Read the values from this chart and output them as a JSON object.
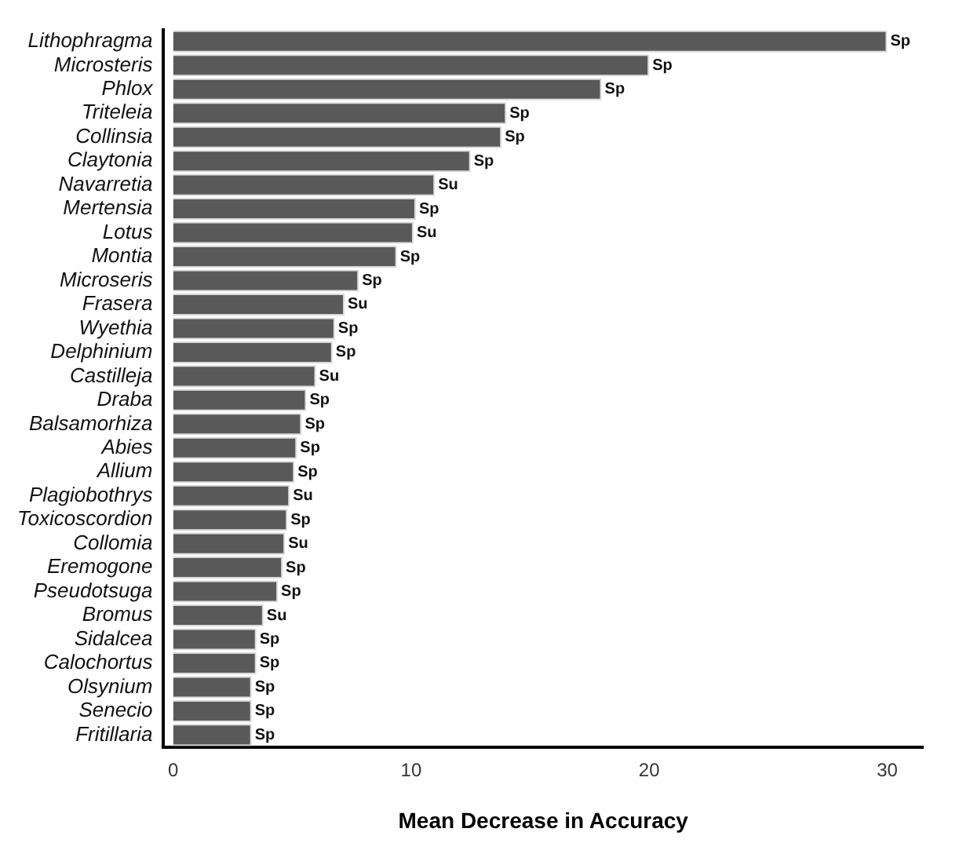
{
  "chart_data": {
    "type": "bar",
    "orientation": "horizontal",
    "xlabel": "Mean Decrease in Accuracy",
    "categories": [
      "Lithophragma",
      "Microsteris",
      "Phlox",
      "Triteleia",
      "Collinsia",
      "Claytonia",
      "Navarretia",
      "Mertensia",
      "Lotus",
      "Montia",
      "Microseris",
      "Frasera",
      "Wyethia",
      "Delphinium",
      "Castilleja",
      "Draba",
      "Balsamorhiza",
      "Abies",
      "Allium",
      "Plagiobothrys",
      "Toxicoscordion",
      "Collomia",
      "Eremogone",
      "Pseudotsuga",
      "Bromus",
      "Sidalcea",
      "Calochortus",
      "Olsynium",
      "Senecio",
      "Fritillaria"
    ],
    "values": [
      30.0,
      20.0,
      18.0,
      14.0,
      13.8,
      12.5,
      11.0,
      10.2,
      10.1,
      9.4,
      7.8,
      7.2,
      6.8,
      6.7,
      6.0,
      5.6,
      5.4,
      5.2,
      5.1,
      4.9,
      4.8,
      4.7,
      4.6,
      4.4,
      3.8,
      3.5,
      3.5,
      3.3,
      3.3,
      3.3
    ],
    "value_labels": [
      "Sp",
      "Sp",
      "Sp",
      "Sp",
      "Sp",
      "Sp",
      "Su",
      "Sp",
      "Su",
      "Sp",
      "Sp",
      "Su",
      "Sp",
      "Sp",
      "Su",
      "Sp",
      "Sp",
      "Sp",
      "Sp",
      "Su",
      "Sp",
      "Su",
      "Sp",
      "Sp",
      "Su",
      "Sp",
      "Sp",
      "Sp",
      "Sp",
      "Sp"
    ],
    "color": "#595959",
    "xlim": [
      -0.4,
      31.5
    ],
    "xticks": [
      0,
      10,
      20,
      30
    ],
    "grid": false,
    "legend": false
  }
}
